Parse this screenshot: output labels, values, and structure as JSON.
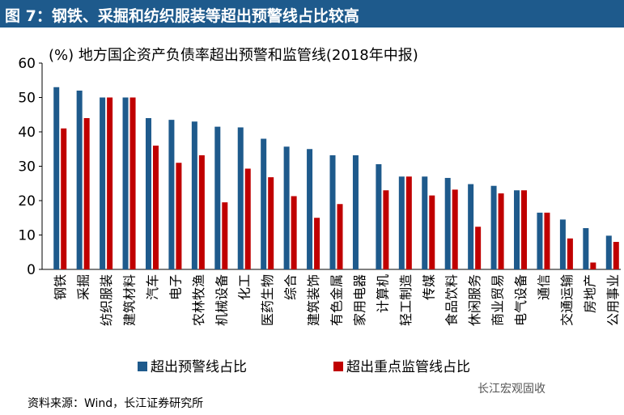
{
  "header": {
    "title": "图 7：钢铁、采掘和纺织服装等超出预警线占比较高"
  },
  "source": "资料来源：Wind，长江证券研究所",
  "watermark": "长江宏观固收",
  "colors": {
    "series1": "#1e5a8c",
    "series2": "#c00000",
    "header": "#1e5a8c"
  },
  "chart_data": {
    "type": "bar",
    "title": "(%) 地方国企资产负债率超出预警和监管线(2018年中报)",
    "ylim": [
      0,
      60
    ],
    "yticks": [
      0,
      10,
      20,
      30,
      40,
      50,
      60
    ],
    "legend_position": "bottom",
    "categories": [
      "钢铁",
      "采掘",
      "纺织服装",
      "建筑材料",
      "汽车",
      "电子",
      "农林牧渔",
      "机械设备",
      "化工",
      "医药生物",
      "综合",
      "建筑装饰",
      "有色金属",
      "家用电器",
      "计算机",
      "轻工制造",
      "传媒",
      "食品饮料",
      "休闲服务",
      "商业贸易",
      "电气设备",
      "通信",
      "交通运输",
      "房地产",
      "公用事业"
    ],
    "series": [
      {
        "name": "超出预警线占比",
        "values": [
          53,
          52,
          50,
          50,
          44,
          43.5,
          43,
          41.5,
          41.3,
          38,
          35.7,
          35,
          33.2,
          33.2,
          30.6,
          27,
          27,
          26.6,
          24.8,
          24.3,
          23,
          16.5,
          14.5,
          12,
          9.8
        ]
      },
      {
        "name": "超出重点监管线占比",
        "values": [
          41,
          44,
          50,
          50,
          36,
          31,
          33.2,
          19.5,
          29.3,
          26.8,
          21.3,
          15,
          19,
          0,
          23,
          27,
          21.5,
          23.2,
          12.4,
          22.1,
          23,
          16.5,
          9,
          2,
          8
        ]
      }
    ]
  }
}
